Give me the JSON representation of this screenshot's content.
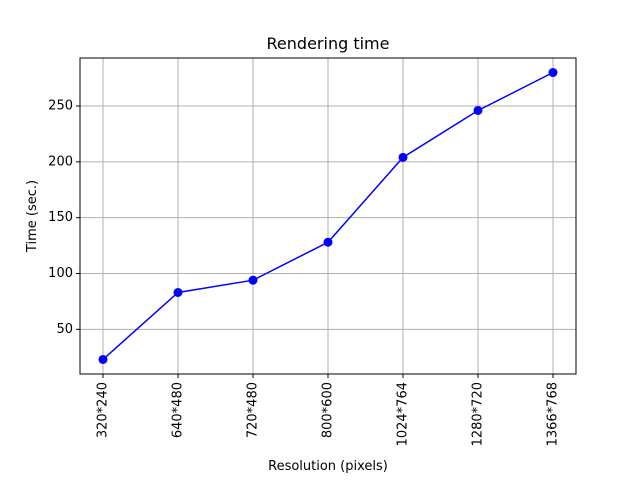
{
  "chart_data": {
    "type": "line",
    "title": "Rendering time",
    "xlabel": "Resolution (pixels)",
    "ylabel": "Time (sec.)",
    "categories": [
      "320*240",
      "640*480",
      "720*480",
      "800*600",
      "1024*764",
      "1280*720",
      "1366*768"
    ],
    "series": [
      {
        "values": [
          23,
          83,
          94,
          128,
          204,
          246,
          280
        ]
      }
    ],
    "ylim": [
      10,
      293
    ],
    "yticks": [
      50,
      100,
      150,
      200,
      250
    ],
    "grid": true,
    "line_color": "#0000ff",
    "marker": "circle"
  }
}
